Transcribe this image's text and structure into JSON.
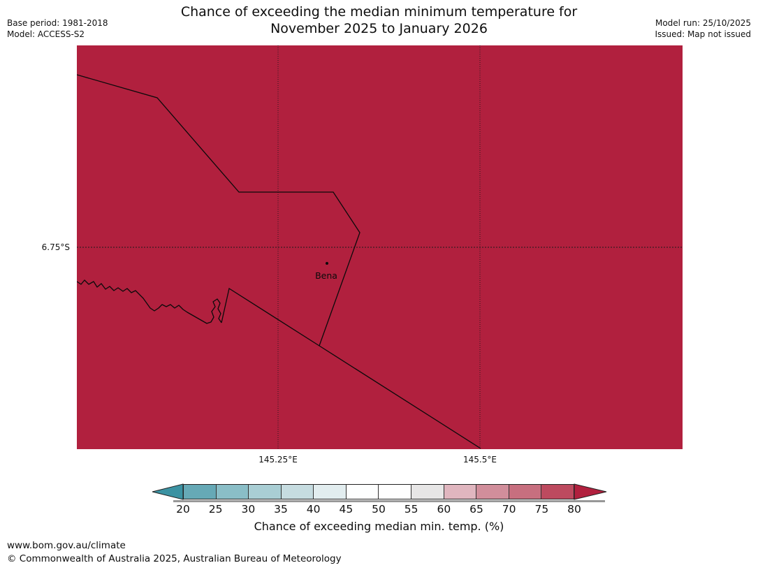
{
  "header": {
    "title_line1": "Chance of exceeding the median minimum temperature for",
    "title_line2": "November 2025 to January 2026",
    "base_period": "Base period: 1981-2018",
    "model": "Model: ACCESS-S2",
    "model_run": "Model run: 25/10/2025",
    "issued": "Issued: Map not issued"
  },
  "map": {
    "fill_color": "#b1203e",
    "fill_meaning": "Chance > 80%",
    "lat_label": "6.75°S",
    "lon_labels": [
      "145.25°E",
      "145.5°E"
    ],
    "place": {
      "name": "Bena"
    }
  },
  "colorbar": {
    "caption": "Chance of exceeding median min. temp. (%)",
    "ticks": [
      "20",
      "25",
      "30",
      "35",
      "40",
      "45",
      "50",
      "55",
      "60",
      "65",
      "70",
      "75",
      "80"
    ],
    "segment_colors": [
      "#66a9b6",
      "#8abec7",
      "#a9ced4",
      "#c6dce0",
      "#e2edef",
      "#fdfefe",
      "#fefefe",
      "#e7e6e6",
      "#e0b6bf",
      "#d18e9b",
      "#c76f7f",
      "#bd4a5f"
    ],
    "arrow_left_color": "#3b92a2",
    "arrow_right_color": "#b1203e"
  },
  "footer": {
    "url": "www.bom.gov.au/climate",
    "copyright": "© Commonwealth of Australia 2025, Australian Bureau of Meteorology"
  }
}
